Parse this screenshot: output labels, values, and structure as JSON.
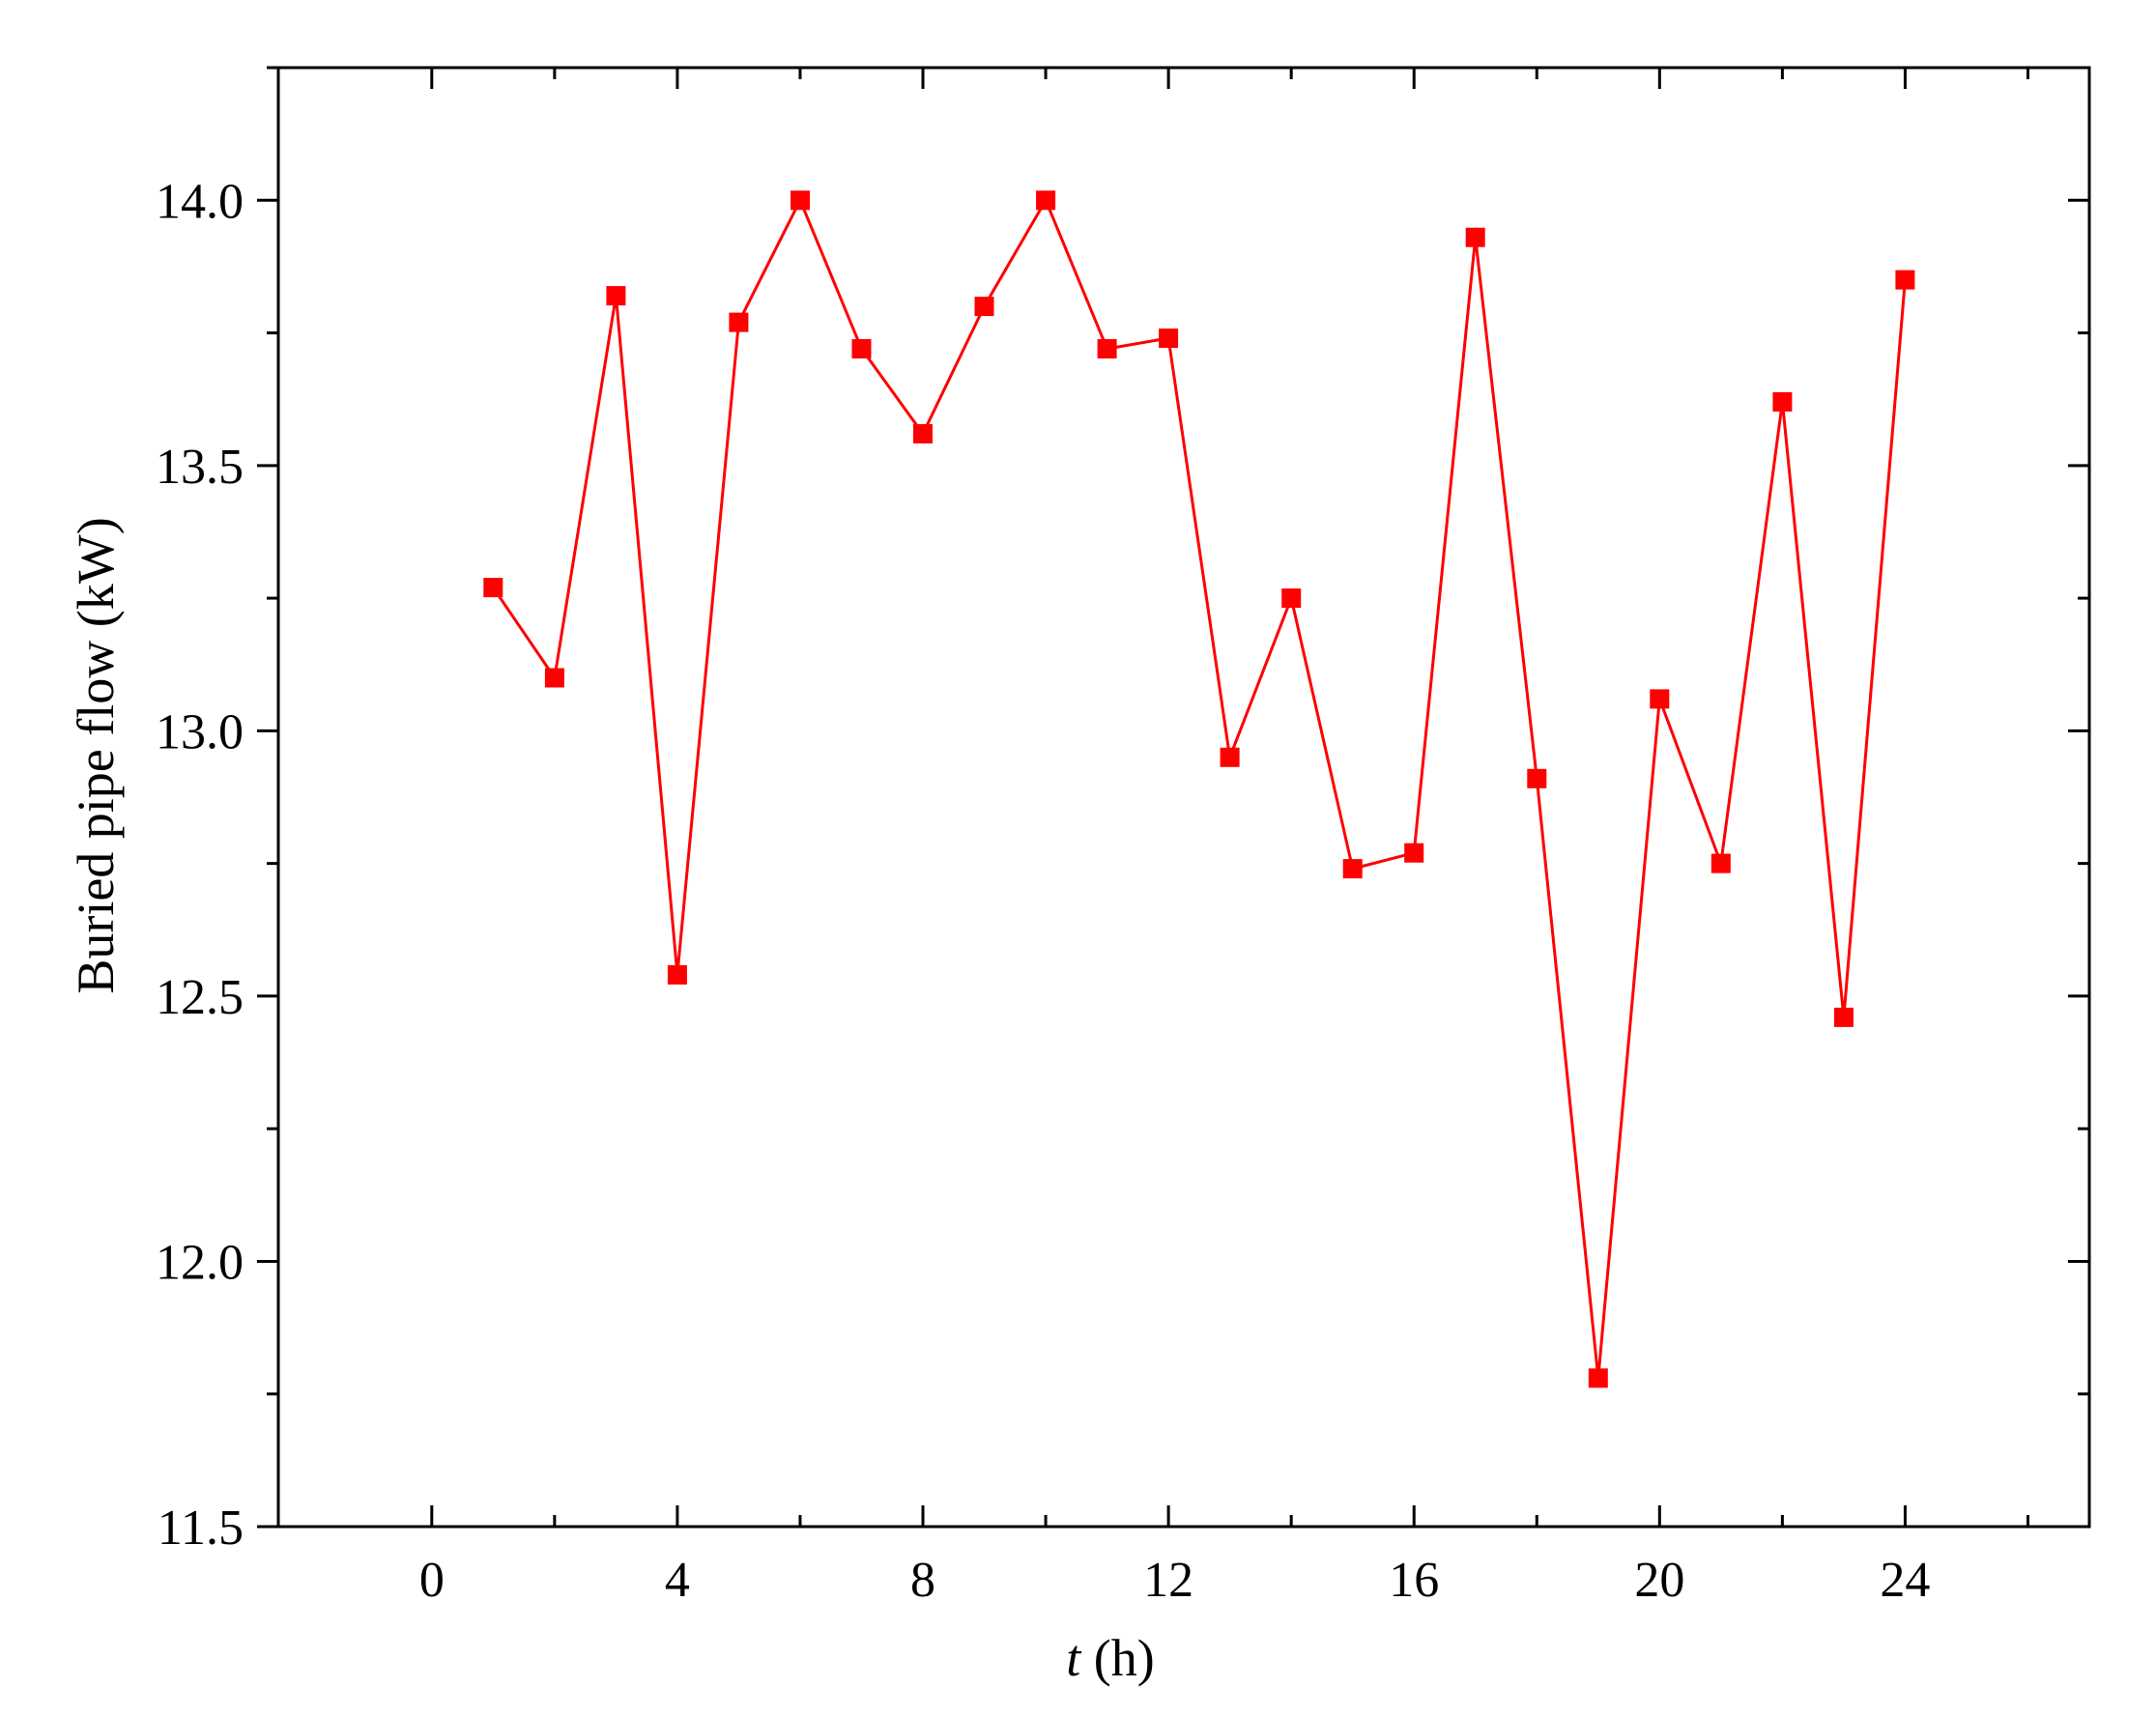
{
  "chart_data": {
    "type": "line",
    "xlabel_italic": "t",
    "xlabel_rest": " (h)",
    "ylabel": "Buried pipe flow (kW)",
    "xlim": [
      -2.5,
      27
    ],
    "ylim": [
      11.5,
      14.25
    ],
    "x_ticks": [
      0,
      4,
      8,
      12,
      16,
      20,
      24
    ],
    "x_tick_labels": [
      "0",
      "4",
      "8",
      "12",
      "16",
      "20",
      "24"
    ],
    "x_minor_ticks": [
      2,
      6,
      10,
      14,
      18,
      22,
      26
    ],
    "y_ticks": [
      11.5,
      12.0,
      12.5,
      13.0,
      13.5,
      14.0
    ],
    "y_tick_labels": [
      "11.5",
      "12.0",
      "12.5",
      "13.0",
      "13.5",
      "14.0"
    ],
    "y_minor_ticks": [
      11.75,
      12.25,
      12.75,
      13.25,
      13.75,
      14.25
    ],
    "grid": false,
    "legend": "none",
    "series": [
      {
        "color": "#ff0000",
        "marker": "square",
        "x": [
          1,
          2,
          3,
          4,
          5,
          6,
          7,
          8,
          9,
          10,
          11,
          12,
          13,
          14,
          15,
          16,
          17,
          18,
          19,
          20,
          21,
          22,
          23,
          24
        ],
        "y": [
          13.27,
          13.1,
          13.82,
          12.54,
          13.77,
          14.0,
          13.72,
          13.56,
          13.8,
          14.0,
          13.72,
          13.74,
          12.95,
          13.25,
          12.74,
          12.77,
          13.93,
          12.91,
          11.78,
          13.06,
          12.75,
          13.62,
          12.46,
          13.85
        ]
      }
    ]
  }
}
